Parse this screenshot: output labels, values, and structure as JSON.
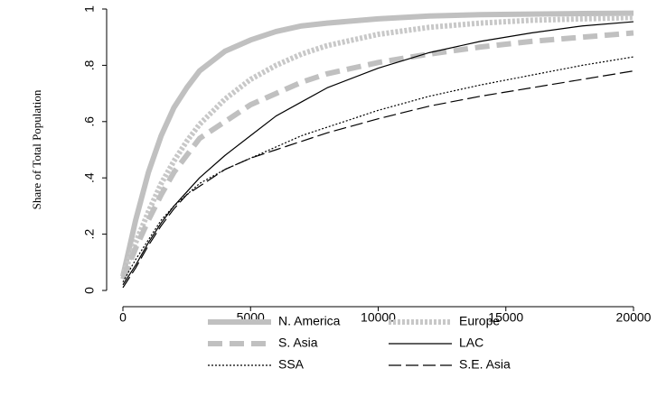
{
  "chart_data": {
    "type": "line",
    "y_label": "Share of Total Population",
    "x": [
      0,
      500,
      1000,
      1500,
      2000,
      2500,
      3000,
      4000,
      5000,
      6000,
      7000,
      8000,
      10000,
      12000,
      14000,
      16000,
      18000,
      20000
    ],
    "xlim": [
      0,
      20000
    ],
    "xticks": [
      0,
      5000,
      10000,
      15000,
      20000
    ],
    "ylim": [
      0,
      1
    ],
    "yticks": [
      0,
      {
        "value": 0.2,
        "label": ".2"
      },
      {
        "value": 0.4,
        "label": ".4"
      },
      {
        "value": 0.6,
        "label": ".6"
      },
      {
        "value": 0.8,
        "label": ".8"
      },
      1
    ],
    "grid": false,
    "legend": "bottom",
    "series": [
      {
        "name": "N. America",
        "color": "#c0c0c0",
        "linewidth": "thick",
        "linestyle": "solid",
        "values": [
          0.05,
          0.25,
          0.42,
          0.55,
          0.65,
          0.72,
          0.78,
          0.85,
          0.89,
          0.92,
          0.94,
          0.95,
          0.965,
          0.975,
          0.98,
          0.982,
          0.984,
          0.985
        ]
      },
      {
        "name": "Europe",
        "color": "#c8c8c8",
        "linewidth": "thick",
        "linestyle": "dotted",
        "values": [
          0.05,
          0.17,
          0.28,
          0.38,
          0.46,
          0.53,
          0.59,
          0.68,
          0.75,
          0.8,
          0.84,
          0.87,
          0.91,
          0.935,
          0.95,
          0.96,
          0.965,
          0.97
        ]
      },
      {
        "name": "S. Asia",
        "color": "#c0c0c0",
        "linewidth": "thick",
        "linestyle": "dashed",
        "values": [
          0.04,
          0.15,
          0.25,
          0.34,
          0.42,
          0.48,
          0.54,
          0.6,
          0.66,
          0.7,
          0.74,
          0.77,
          0.81,
          0.84,
          0.865,
          0.885,
          0.9,
          0.915
        ]
      },
      {
        "name": "LAC",
        "color": "#000000",
        "linewidth": "thin",
        "linestyle": "solid",
        "values": [
          0.02,
          0.09,
          0.17,
          0.24,
          0.3,
          0.35,
          0.4,
          0.48,
          0.55,
          0.62,
          0.67,
          0.72,
          0.79,
          0.845,
          0.885,
          0.915,
          0.94,
          0.955
        ]
      },
      {
        "name": "SSA",
        "color": "#000000",
        "linewidth": "thin",
        "linestyle": "dotted",
        "values": [
          0.03,
          0.11,
          0.18,
          0.25,
          0.3,
          0.34,
          0.38,
          0.43,
          0.47,
          0.51,
          0.55,
          0.58,
          0.64,
          0.69,
          0.73,
          0.765,
          0.8,
          0.83
        ]
      },
      {
        "name": "S.E. Asia",
        "color": "#000000",
        "linewidth": "thin",
        "linestyle": "longdash",
        "values": [
          0.01,
          0.08,
          0.16,
          0.23,
          0.29,
          0.34,
          0.37,
          0.43,
          0.47,
          0.5,
          0.53,
          0.56,
          0.61,
          0.655,
          0.69,
          0.72,
          0.75,
          0.78
        ]
      }
    ]
  }
}
